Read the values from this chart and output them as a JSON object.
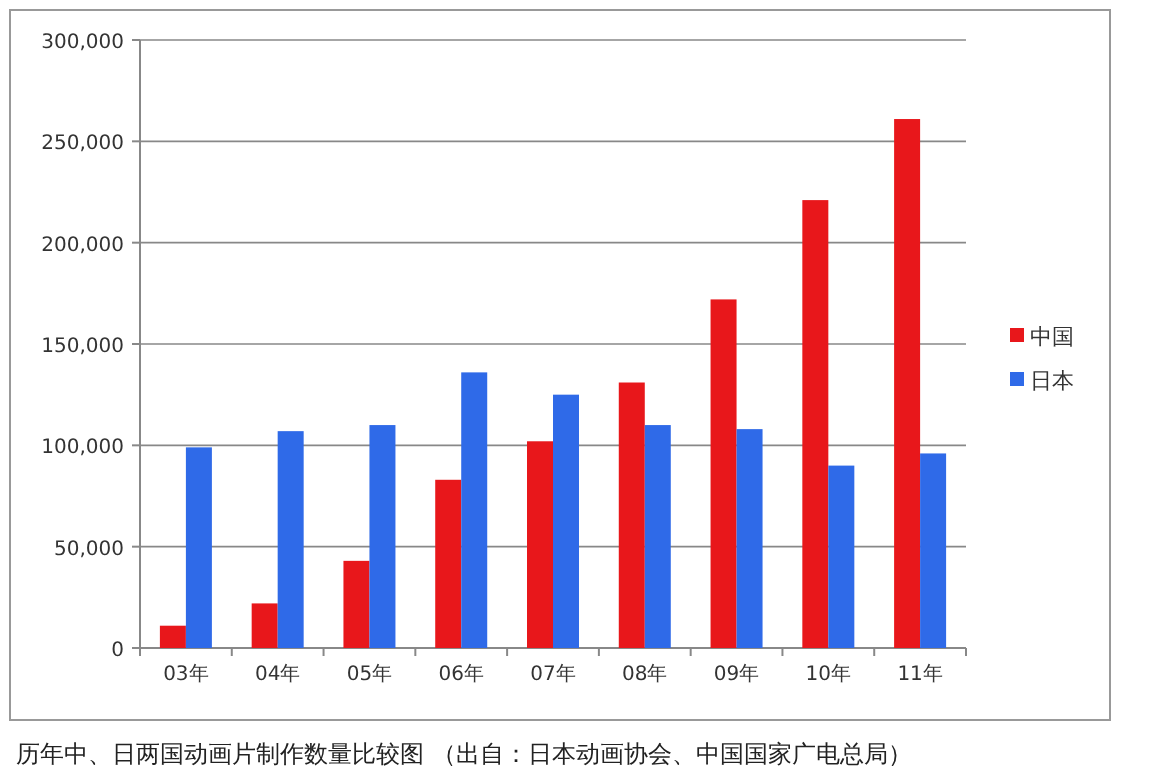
{
  "chart_data": {
    "type": "bar",
    "categories": [
      "03年",
      "04年",
      "05年",
      "06年",
      "07年",
      "08年",
      "09年",
      "10年",
      "11年"
    ],
    "series": [
      {
        "name": "中国",
        "color": "#e8171b",
        "values": [
          11000,
          22000,
          43000,
          83000,
          102000,
          131000,
          172000,
          221000,
          261000
        ]
      },
      {
        "name": "日本",
        "color": "#2f6ae8",
        "values": [
          99000,
          107000,
          110000,
          136000,
          125000,
          110000,
          108000,
          90000,
          96000
        ]
      }
    ],
    "ylim": [
      0,
      300000
    ],
    "yticks": [
      0,
      {
        "value": 50000,
        "label": "50,000"
      },
      {
        "value": 100000,
        "label": "100,000"
      },
      {
        "value": 150000,
        "label": "150,000"
      },
      {
        "value": 200000,
        "label": "200,000"
      },
      {
        "value": 250000,
        "label": "250,000"
      },
      {
        "value": 300000,
        "label": "300,000"
      }
    ],
    "grid": "y",
    "legend": "right",
    "annotations": [
      "历年中、日两国动画片制作数量比较图 （出自：日本动画协会、中国国家广电总局）"
    ]
  }
}
